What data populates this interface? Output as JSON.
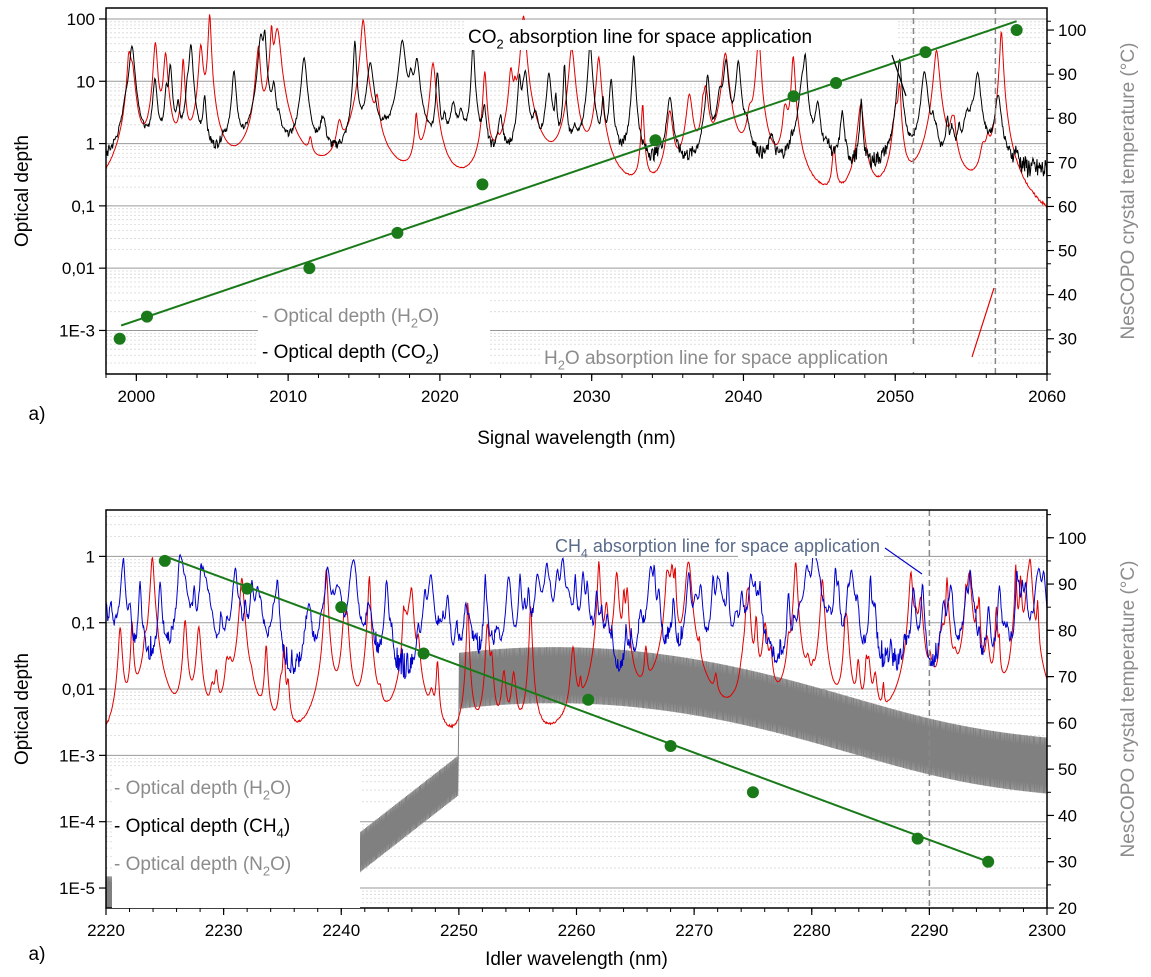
{
  "chart_data": [
    {
      "type": "line",
      "panel_label": "a)",
      "xlabel": "Signal wavelength (nm)",
      "ylabel": "Optical depth",
      "y2label": "NesCOPO crystal temperature (°C)",
      "xlim": [
        1998,
        2060
      ],
      "ylim_log": [
        0.0002,
        150
      ],
      "y2lim": [
        22,
        105
      ],
      "xticks": [
        2000,
        2010,
        2020,
        2030,
        2040,
        2050,
        2060
      ],
      "yticks": [
        {
          "v": 100,
          "label": "100"
        },
        {
          "v": 10,
          "label": "10"
        },
        {
          "v": 1,
          "label": "1"
        },
        {
          "v": 0.1,
          "label": "0,1"
        },
        {
          "v": 0.01,
          "label": "0,01"
        },
        {
          "v": 0.001,
          "label": "1E-3"
        }
      ],
      "y2ticks": [
        30,
        40,
        50,
        60,
        70,
        80,
        90,
        100
      ],
      "series": [
        {
          "name": "Optical depth (H2O)",
          "color": "#e00000",
          "kind": "synthetic",
          "base": 0.02,
          "amp": 120,
          "lines": 60,
          "seed": 3
        },
        {
          "name": "Optical depth (CO2)",
          "color": "#000000",
          "kind": "synthetic",
          "base": 0.5,
          "amp": 50,
          "lines": 90,
          "seed": 7
        }
      ],
      "temperature_points": {
        "x": [
          1998.9,
          2000.7,
          2011.4,
          2017.2,
          2022.8,
          2034.2,
          2043.3,
          2046.1,
          2052.0,
          2058.0
        ],
        "y": [
          30,
          35,
          46,
          54,
          65,
          75,
          85,
          88,
          95,
          100
        ],
        "color": "#1a7a1a"
      },
      "fit_line": {
        "x": [
          1999,
          2058
        ],
        "y": [
          33,
          102
        ]
      },
      "vlines": [
        2051.2,
        2056.6
      ],
      "legend": [
        {
          "pre": "- Optical depth (H",
          "sub": "2",
          "post": "O)",
          "color": "#8c8c8c"
        },
        {
          "pre": "- Optical depth (CO",
          "sub": "2",
          "post": ")",
          "color": "#000000"
        }
      ],
      "annotations": [
        {
          "pre": "CO",
          "sub": "2",
          "post": " absorption line for space application",
          "color": "#000000"
        },
        {
          "pre": "H",
          "sub": "2",
          "post": "O absorption line for space application",
          "color": "#8c8c8c"
        }
      ]
    },
    {
      "type": "line",
      "panel_label": "a)",
      "xlabel": "Idler wavelength (nm)",
      "ylabel": "Optical depth",
      "y2label": "NesCOPO crystal temperature (°C)",
      "xlim": [
        2220,
        2300
      ],
      "ylim_log": [
        5e-06,
        5
      ],
      "y2lim": [
        20,
        106
      ],
      "xticks": [
        2220,
        2230,
        2240,
        2250,
        2260,
        2270,
        2280,
        2290,
        2300
      ],
      "yticks": [
        {
          "v": 1,
          "label": "1"
        },
        {
          "v": 0.1,
          "label": "0,1"
        },
        {
          "v": 0.01,
          "label": "0,01"
        },
        {
          "v": 0.001,
          "label": "1E-3"
        },
        {
          "v": 0.0001,
          "label": "1E-4"
        },
        {
          "v": 1e-05,
          "label": "1E-5"
        }
      ],
      "y2ticks": [
        20,
        30,
        40,
        50,
        60,
        70,
        80,
        90,
        100
      ],
      "series": [
        {
          "name": "Optical depth (N2O)",
          "color": "#808080",
          "kind": "n2o",
          "seed": 11
        },
        {
          "name": "Optical depth (H2O)",
          "color": "#e00000",
          "kind": "synthetic",
          "base": 0.0003,
          "amp": 1.0,
          "lines": 110,
          "seed": 5
        },
        {
          "name": "Optical depth (CH4)",
          "color": "#0000cc",
          "kind": "noise",
          "base": 0.008,
          "amp": 0.6,
          "lines": 420,
          "seed": 9
        }
      ],
      "temperature_points": {
        "x": [
          2225.0,
          2232.0,
          2240.0,
          2247.0,
          2261.0,
          2268.0,
          2275.0,
          2289.0,
          2295.0
        ],
        "y": [
          95,
          89,
          85,
          75,
          65,
          55,
          45,
          35,
          30
        ],
        "color": "#1a7a1a"
      },
      "fit_line": {
        "x": [
          2225,
          2295
        ],
        "y": [
          96,
          30
        ]
      },
      "vlines": [
        2290
      ],
      "legend": [
        {
          "pre": "- Optical depth (H",
          "sub": "2",
          "post": "O)",
          "color": "#8c8c8c"
        },
        {
          "pre": "- Optical depth (CH",
          "sub": "4",
          "post": ")",
          "color": "#000000"
        },
        {
          "pre": "- Optical depth (N",
          "sub": "2",
          "post": "O)",
          "color": "#8c8c8c"
        }
      ],
      "annotations": [
        {
          "pre": "CH",
          "sub": "4",
          "post": " absorption line for space application",
          "color": "#5a6b8a"
        }
      ]
    }
  ]
}
